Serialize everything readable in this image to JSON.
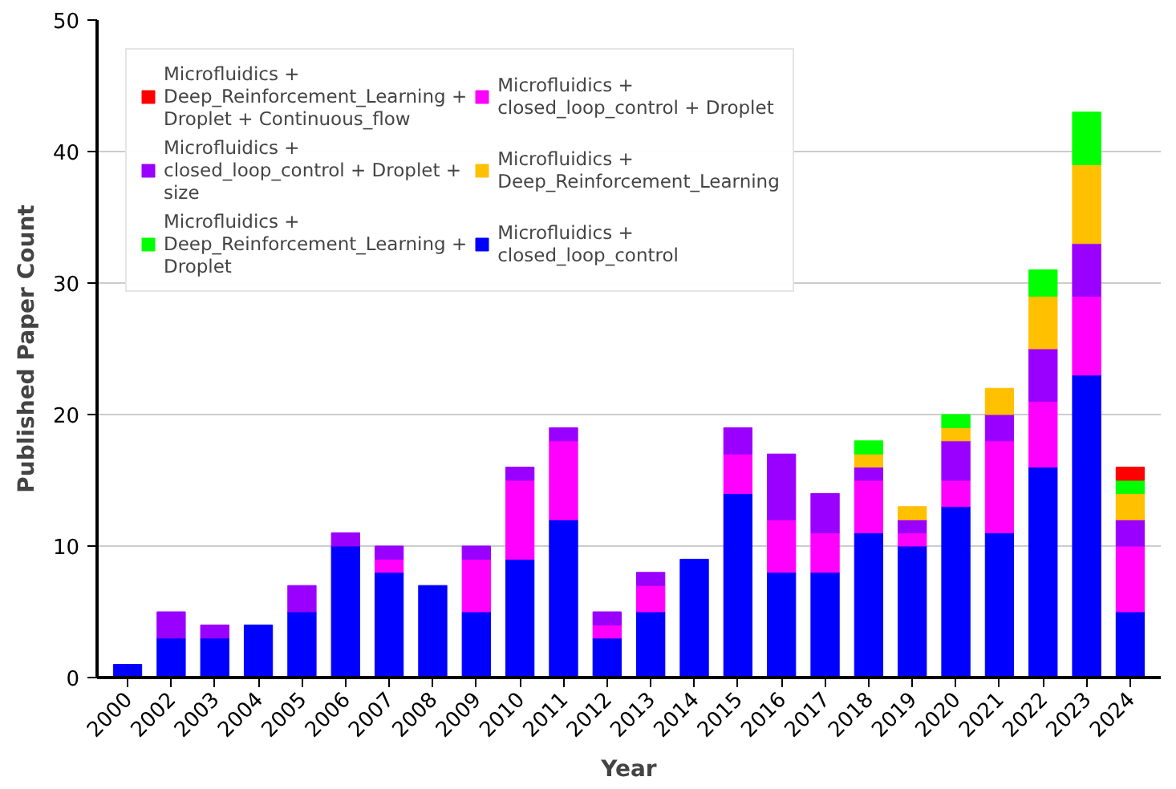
{
  "chart_data": {
    "type": "bar",
    "stacked": true,
    "xlabel": "Year",
    "ylabel": "Published Paper Count",
    "categories": [
      "2000",
      "2002",
      "2003",
      "2004",
      "2005",
      "2006",
      "2007",
      "2008",
      "2009",
      "2010",
      "2011",
      "2012",
      "2013",
      "2014",
      "2015",
      "2016",
      "2017",
      "2018",
      "2019",
      "2020",
      "2021",
      "2022",
      "2023",
      "2024"
    ],
    "series": [
      {
        "name": "Microfluidics + closed_loop_control",
        "color": "#0000ff",
        "values": [
          1,
          3,
          3,
          4,
          5,
          10,
          8,
          7,
          5,
          9,
          12,
          3,
          5,
          9,
          14,
          8,
          8,
          11,
          10,
          13,
          11,
          16,
          23,
          5
        ]
      },
      {
        "name": "Microfluidics + closed_loop_control + Droplet",
        "color": "#ff00ff",
        "values": [
          0,
          0,
          0,
          0,
          0,
          0,
          1,
          0,
          4,
          6,
          6,
          1,
          2,
          0,
          3,
          4,
          3,
          4,
          1,
          2,
          7,
          5,
          6,
          5
        ]
      },
      {
        "name": "Microfluidics + closed_loop_control + Droplet + size",
        "color": "#9900ff",
        "values": [
          0,
          2,
          1,
          0,
          2,
          1,
          1,
          0,
          1,
          1,
          1,
          1,
          1,
          0,
          2,
          5,
          3,
          1,
          1,
          3,
          2,
          4,
          4,
          2
        ]
      },
      {
        "name": "Microfluidics + Deep_Reinforcement_Learning",
        "color": "#ffc000",
        "values": [
          0,
          0,
          0,
          0,
          0,
          0,
          0,
          0,
          0,
          0,
          0,
          0,
          0,
          0,
          0,
          0,
          0,
          1,
          1,
          1,
          2,
          4,
          6,
          2
        ]
      },
      {
        "name": "Microfluidics + Deep_Reinforcement_Learning + Droplet",
        "color": "#00ff00",
        "values": [
          0,
          0,
          0,
          0,
          0,
          0,
          0,
          0,
          0,
          0,
          0,
          0,
          0,
          0,
          0,
          0,
          0,
          1,
          0,
          1,
          0,
          2,
          4,
          1
        ]
      },
      {
        "name": "Microfluidics + Deep_Reinforcement_Learning + Droplet + Continuous_flow",
        "color": "#ff0000",
        "values": [
          0,
          0,
          0,
          0,
          0,
          0,
          0,
          0,
          0,
          0,
          0,
          0,
          0,
          0,
          0,
          0,
          0,
          0,
          0,
          0,
          0,
          0,
          0,
          1
        ]
      }
    ],
    "ylim": [
      0,
      50
    ],
    "yticks": [
      0,
      10,
      20,
      30,
      40,
      50
    ],
    "grid": "y",
    "legend": "top left"
  }
}
